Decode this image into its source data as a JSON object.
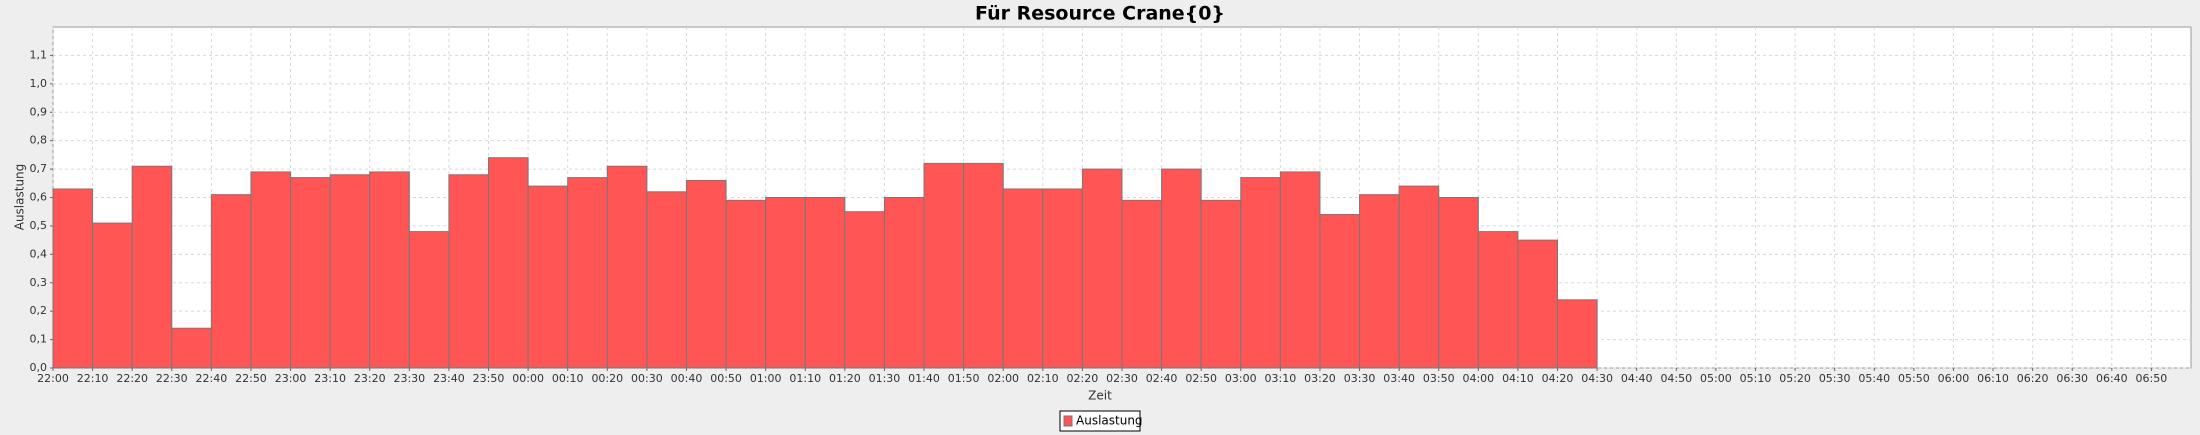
{
  "chart_data": {
    "type": "bar",
    "title": "Für Resource Crane{0}",
    "x_label": "Zeit",
    "y_label": "Auslastung",
    "categories": [
      "22:00",
      "22:10",
      "22:20",
      "22:30",
      "22:40",
      "22:50",
      "23:00",
      "23:10",
      "23:20",
      "23:30",
      "23:40",
      "23:50",
      "00:00",
      "00:10",
      "00:20",
      "00:30",
      "00:40",
      "00:50",
      "01:00",
      "01:10",
      "01:20",
      "01:30",
      "01:40",
      "01:50",
      "02:00",
      "02:10",
      "02:20",
      "02:30",
      "02:40",
      "02:50",
      "03:00",
      "03:10",
      "03:20",
      "03:30",
      "03:40",
      "03:50",
      "04:00",
      "04:10",
      "04:20",
      "04:30",
      "04:40",
      "04:50",
      "05:00",
      "05:10",
      "05:20",
      "05:30",
      "05:40",
      "05:50",
      "06:00",
      "06:10",
      "06:20",
      "06:30",
      "06:40",
      "06:50"
    ],
    "series": [
      {
        "name": "Auslastung",
        "color": "#ff5555",
        "values": [
          0.63,
          0.51,
          0.71,
          0.14,
          0.61,
          0.69,
          0.67,
          0.68,
          0.69,
          0.48,
          0.68,
          0.74,
          0.64,
          0.67,
          0.71,
          0.62,
          0.66,
          0.59,
          0.6,
          0.6,
          0.55,
          0.6,
          0.72,
          0.72,
          0.63,
          0.63,
          0.7,
          0.59,
          0.7,
          0.59,
          0.67,
          0.69,
          0.54,
          0.61,
          0.64,
          0.6,
          0.48,
          0.45,
          0.24,
          null,
          null,
          null,
          null,
          null,
          null,
          null,
          null,
          null,
          null,
          null,
          null,
          null,
          null,
          null
        ]
      }
    ],
    "ylim": [
      0,
      1.2
    ],
    "yticks": [
      {
        "value": 0,
        "label": "0,0"
      },
      {
        "value": 0.1,
        "label": "0,1"
      },
      {
        "value": 0.2,
        "label": "0,2"
      },
      {
        "value": 0.3,
        "label": "0,3"
      },
      {
        "value": 0.4,
        "label": "0,4"
      },
      {
        "value": 0.5,
        "label": "0,5"
      },
      {
        "value": 0.6,
        "label": "0,6"
      },
      {
        "value": 0.7,
        "label": "0,7"
      },
      {
        "value": 0.8,
        "label": "0,8"
      },
      {
        "value": 0.9,
        "label": "0,9"
      },
      {
        "value": 1.0,
        "label": "1,0"
      },
      {
        "value": 1.1,
        "label": "1,1"
      }
    ],
    "grid": true,
    "legend": "bottom"
  }
}
